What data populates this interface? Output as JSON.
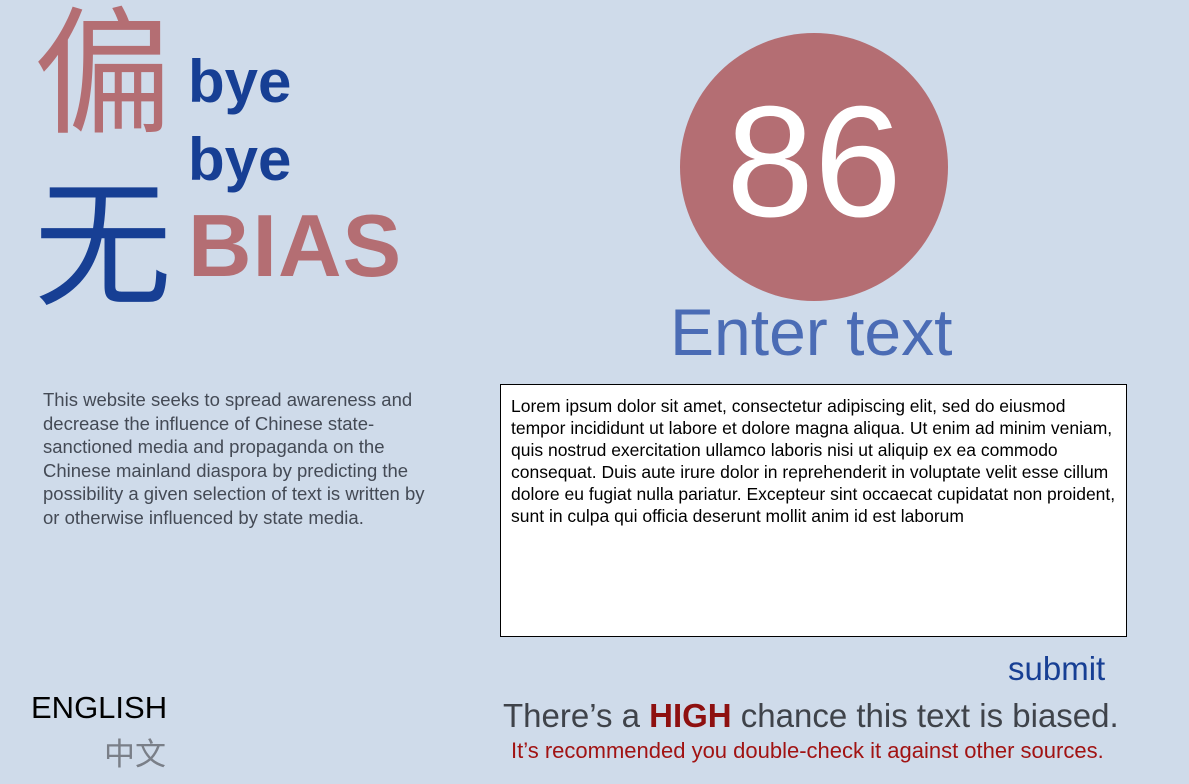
{
  "logo": {
    "cn_top": "偏",
    "cn_bottom": "无",
    "bye_1": "bye",
    "bye_2": "bye",
    "bias": "BIAS"
  },
  "description": "This website seeks to spread awareness and decrease the influence of Chinese state-sanctioned media and propaganda on the Chinese mainland diaspora by predicting the possibility a given selection of text is written by or otherwise influenced by state media.",
  "languages": {
    "english": "ENGLISH",
    "chinese": "中文"
  },
  "score": {
    "value": "86"
  },
  "input": {
    "label": "Enter text",
    "value": "Lorem ipsum dolor sit amet, consectetur adipiscing elit, sed do eiusmod tempor incididunt ut labore et dolore magna aliqua. Ut enim ad minim veniam, quis nostrud exercitation ullamco laboris nisi ut aliquip ex ea commodo consequat. Duis aute irure dolor in reprehenderit in voluptate velit esse cillum dolore eu fugiat nulla pariatur. Excepteur sint occaecat cupidatat non proident, sunt in culpa qui officia deserunt mollit anim id est laborum"
  },
  "submit_label": "submit",
  "result": {
    "prefix": "There’s a ",
    "level": "HIGH",
    "suffix": " chance this text is biased.",
    "recommendation": "It’s recommended you double-check it against other sources."
  },
  "colors": {
    "background": "#cfdbea",
    "accent_rose": "#b46e73",
    "accent_blue": "#173f94",
    "label_blue": "#4b6cb5",
    "high_red": "#8e1010"
  }
}
